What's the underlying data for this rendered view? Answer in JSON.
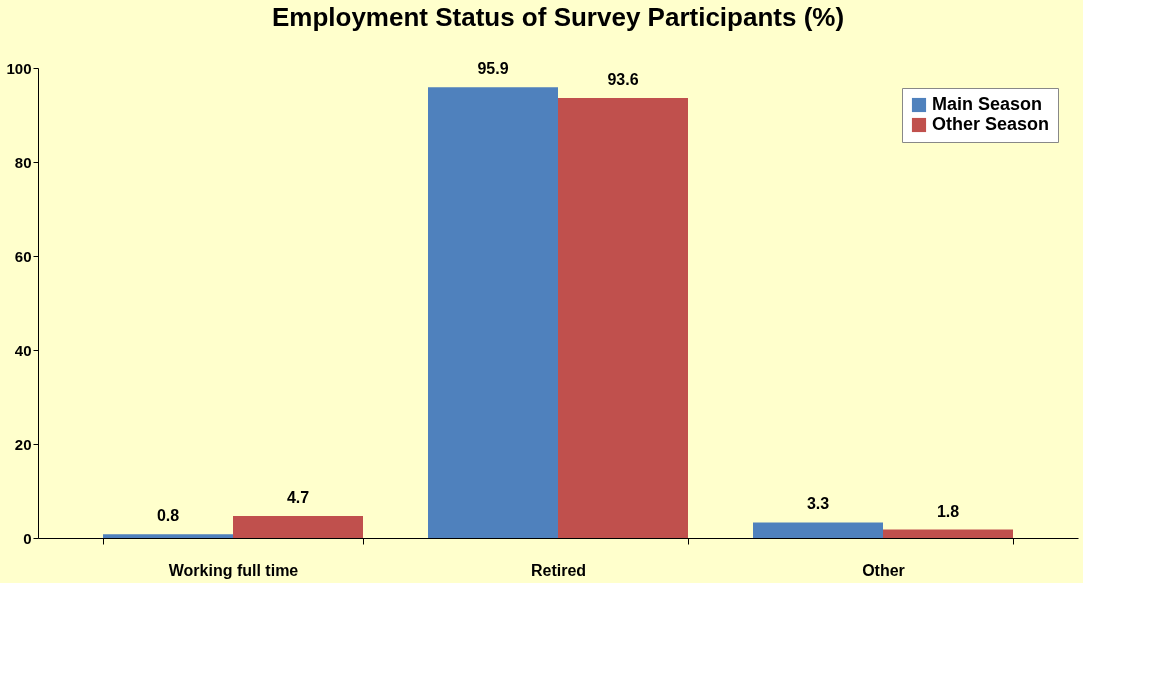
{
  "chart_data": {
    "type": "bar",
    "title": "Employment Status of Survey Participants (%)",
    "categories": [
      "Working full time",
      "Retired",
      "Other"
    ],
    "series": [
      {
        "name": "Main Season",
        "color": "#4f81bd",
        "values": [
          0.8,
          95.9,
          3.3
        ]
      },
      {
        "name": "Other Season",
        "color": "#c0504d",
        "values": [
          4.7,
          93.6,
          1.8
        ]
      }
    ],
    "ylim": [
      0,
      100
    ],
    "yticks": [
      0,
      20,
      40,
      60,
      80,
      100
    ],
    "grid": false,
    "legend": "top right",
    "data_labels": true
  }
}
